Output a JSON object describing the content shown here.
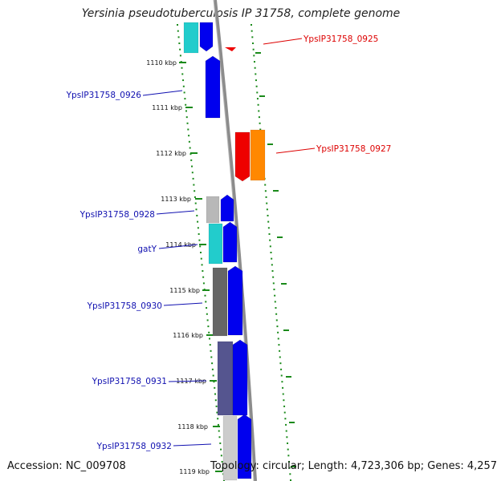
{
  "title": "Yersinia pseudotuberculosis IP 31758, complete genome",
  "footer": {
    "accession": "Accession: NC_009708",
    "summary": "Topology: circular; Length: 4,723,306 bp; Genes: 4,257"
  },
  "colors": {
    "reverse_label": "#1010b0",
    "forward_label": "#dd0000",
    "tick_green": "#1a8a1a",
    "backbone": "#8c8c8c"
  },
  "ticks": [
    {
      "label": "1110 kbp"
    },
    {
      "label": "1111 kbp"
    },
    {
      "label": "1112 kbp"
    },
    {
      "label": "1113 kbp"
    },
    {
      "label": "1114 kbp"
    },
    {
      "label": "1115 kbp"
    },
    {
      "label": "1116 kbp"
    },
    {
      "label": "1117 kbp"
    },
    {
      "label": "1118 kbp"
    },
    {
      "label": "1119 kbp"
    }
  ],
  "gene_labels": [
    {
      "text": "YpsIP31758_0925",
      "strand": "forward"
    },
    {
      "text": "YpsIP31758_0926",
      "strand": "reverse"
    },
    {
      "text": "YpsIP31758_0927",
      "strand": "forward"
    },
    {
      "text": "YpsIP31758_0928",
      "strand": "reverse"
    },
    {
      "text": "gatY",
      "strand": "reverse"
    },
    {
      "text": "YpsIP31758_0930",
      "strand": "reverse"
    },
    {
      "text": "YpsIP31758_0931",
      "strand": "reverse"
    },
    {
      "text": "YpsIP31758_0932",
      "strand": "reverse"
    }
  ]
}
